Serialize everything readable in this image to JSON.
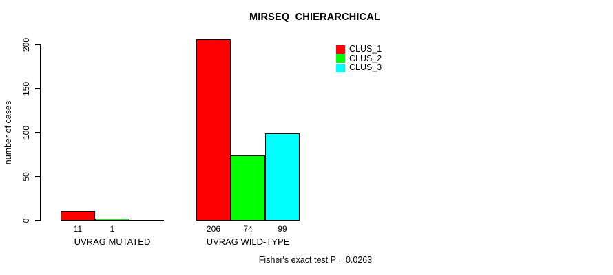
{
  "chart_data": {
    "type": "bar",
    "title": "MIRSEQ_CHIERARCHICAL",
    "ylabel": "number of cases",
    "xlabel": "",
    "ylim": [
      0,
      200
    ],
    "yticks": [
      0,
      50,
      100,
      150,
      200
    ],
    "grid": false,
    "legend_position": "top-right",
    "categories": [
      "UVRAG MUTATED",
      "UVRAG WILD-TYPE"
    ],
    "series": [
      {
        "name": "CLUS_1",
        "color": "#ff0000",
        "values": [
          11,
          206
        ]
      },
      {
        "name": "CLUS_2",
        "color": "#00ff00",
        "values": [
          1,
          74
        ]
      },
      {
        "name": "CLUS_3",
        "color": "#00ffff",
        "values": [
          0,
          99
        ]
      }
    ],
    "bar_labels": [
      [
        "11",
        "1",
        ""
      ],
      [
        "206",
        "74",
        "99"
      ]
    ],
    "annotation": "Fisher's exact test P = 0.0263"
  },
  "colors": {
    "axis": "#000000",
    "background": "#ffffff"
  }
}
